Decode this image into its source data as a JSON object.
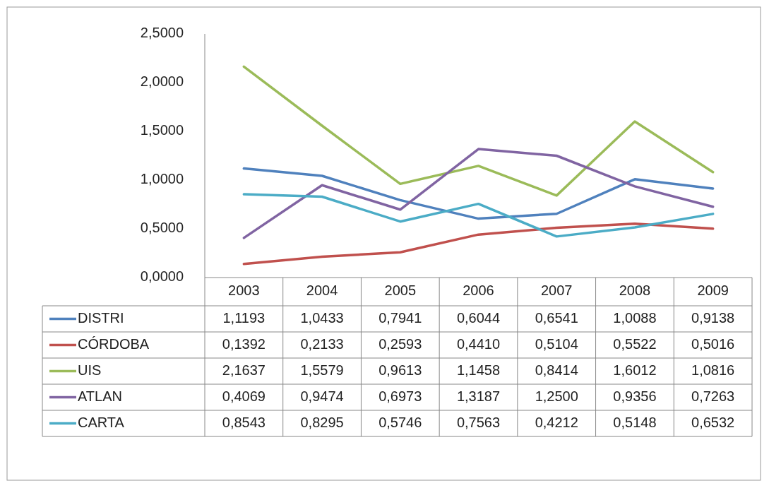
{
  "chart_data": {
    "type": "line",
    "categories": [
      "2003",
      "2004",
      "2005",
      "2006",
      "2007",
      "2008",
      "2009"
    ],
    "series": [
      {
        "name": "DISTRI",
        "color": "#4f81bd",
        "values": [
          1.1193,
          1.0433,
          0.7941,
          0.6044,
          0.6541,
          1.0088,
          0.9138
        ],
        "value_labels": [
          "1,1193",
          "1,0433",
          "0,7941",
          "0,6044",
          "0,6541",
          "1,0088",
          "0,9138"
        ]
      },
      {
        "name": "CÓRDOBA",
        "color": "#c0504d",
        "values": [
          0.1392,
          0.2133,
          0.2593,
          0.441,
          0.5104,
          0.5522,
          0.5016
        ],
        "value_labels": [
          "0,1392",
          "0,2133",
          "0,2593",
          "0,4410",
          "0,5104",
          "0,5522",
          "0,5016"
        ]
      },
      {
        "name": "UIS",
        "color": "#9bbb59",
        "values": [
          2.1637,
          1.5579,
          0.9613,
          1.1458,
          0.8414,
          1.6012,
          1.0816
        ],
        "value_labels": [
          "2,1637",
          "1,5579",
          "0,9613",
          "1,1458",
          "0,8414",
          "1,6012",
          "1,0816"
        ]
      },
      {
        "name": "ATLAN",
        "color": "#8064a2",
        "values": [
          0.4069,
          0.9474,
          0.6973,
          1.3187,
          1.25,
          0.9356,
          0.7263
        ],
        "value_labels": [
          "0,4069",
          "0,9474",
          "0,6973",
          "1,3187",
          "1,2500",
          "0,9356",
          "0,7263"
        ]
      },
      {
        "name": "CARTA",
        "color": "#4bacc6",
        "values": [
          0.8543,
          0.8295,
          0.5746,
          0.7563,
          0.4212,
          0.5148,
          0.6532
        ],
        "value_labels": [
          "0,8543",
          "0,8295",
          "0,5746",
          "0,7563",
          "0,4212",
          "0,5148",
          "0,6532"
        ]
      }
    ],
    "ylim": [
      0,
      2.5
    ],
    "yticks": [
      {
        "value": 0,
        "label": "0,0000"
      },
      {
        "value": 0.5,
        "label": "0,5000"
      },
      {
        "value": 1,
        "label": "1,0000"
      },
      {
        "value": 1.5,
        "label": "1,5000"
      },
      {
        "value": 2,
        "label": "2,0000"
      },
      {
        "value": 2.5,
        "label": "2,5000"
      }
    ],
    "legend": "bottom",
    "grid": false,
    "marker": "none",
    "line_style": "solid"
  }
}
